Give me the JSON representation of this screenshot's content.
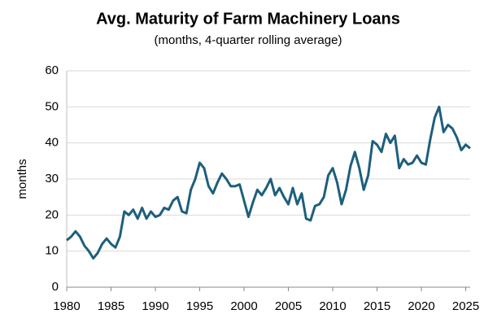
{
  "chart_data": {
    "type": "line",
    "title": "Avg. Maturity of Farm Machinery Loans",
    "subtitle": "(months, 4-quarter rolling average)",
    "y_label": "months",
    "x": [
      1980,
      1980.5,
      1981,
      1981.5,
      1982,
      1982.5,
      1983,
      1983.5,
      1984,
      1984.5,
      1985,
      1985.5,
      1986,
      1986.5,
      1987,
      1987.5,
      1988,
      1988.5,
      1989,
      1989.5,
      1990,
      1990.5,
      1991,
      1991.5,
      1992,
      1992.5,
      1993,
      1993.5,
      1994,
      1994.5,
      1995,
      1995.5,
      1996,
      1996.5,
      1997,
      1997.5,
      1998,
      1998.5,
      1999,
      1999.5,
      2000,
      2000.5,
      2001,
      2001.5,
      2002,
      2002.5,
      2003,
      2003.5,
      2004,
      2004.5,
      2005,
      2005.5,
      2006,
      2006.5,
      2007,
      2007.5,
      2008,
      2008.5,
      2009,
      2009.5,
      2010,
      2010.5,
      2011,
      2011.5,
      2012,
      2012.5,
      2013,
      2013.5,
      2014,
      2014.5,
      2015,
      2015.5,
      2016,
      2016.5,
      2017,
      2017.5,
      2018,
      2018.5,
      2019,
      2019.5,
      2020,
      2020.5,
      2021,
      2021.5,
      2022,
      2022.5,
      2023,
      2023.5,
      2024,
      2024.5,
      2025,
      2025.5
    ],
    "series": [
      {
        "name": "months",
        "color": "#1d5f7c",
        "values": [
          13,
          14,
          15.5,
          14,
          11.5,
          10,
          8,
          9.5,
          12,
          13.5,
          12,
          11,
          14,
          21,
          20,
          21.5,
          19,
          22,
          19,
          21,
          19.5,
          20,
          22,
          21.5,
          24,
          25,
          21,
          20.5,
          27,
          30,
          34.5,
          33,
          28,
          26,
          29,
          31.5,
          30,
          28,
          28,
          28.5,
          24,
          19.5,
          23.5,
          27,
          25.5,
          27.5,
          30,
          25.5,
          27.5,
          25,
          23,
          27.5,
          23,
          26,
          19,
          18.5,
          22.5,
          23,
          25,
          31,
          33,
          29,
          23,
          27,
          33.5,
          37.5,
          33,
          27,
          31,
          40.5,
          39.5,
          37.5,
          42.5,
          40,
          42,
          33,
          35.5,
          34,
          34.5,
          36.5,
          34.5,
          34,
          41,
          47,
          50,
          43,
          45,
          44,
          41.5,
          38,
          39.5,
          38.5
        ]
      }
    ],
    "xlim": [
      1980,
      2025.5
    ],
    "xticks": [
      1980,
      1985,
      1990,
      1995,
      2000,
      2005,
      2010,
      2015,
      2020,
      2025
    ],
    "ylim": [
      0,
      60
    ],
    "yticks": [
      0,
      10,
      20,
      30,
      40,
      50,
      60
    ],
    "grid": true
  }
}
